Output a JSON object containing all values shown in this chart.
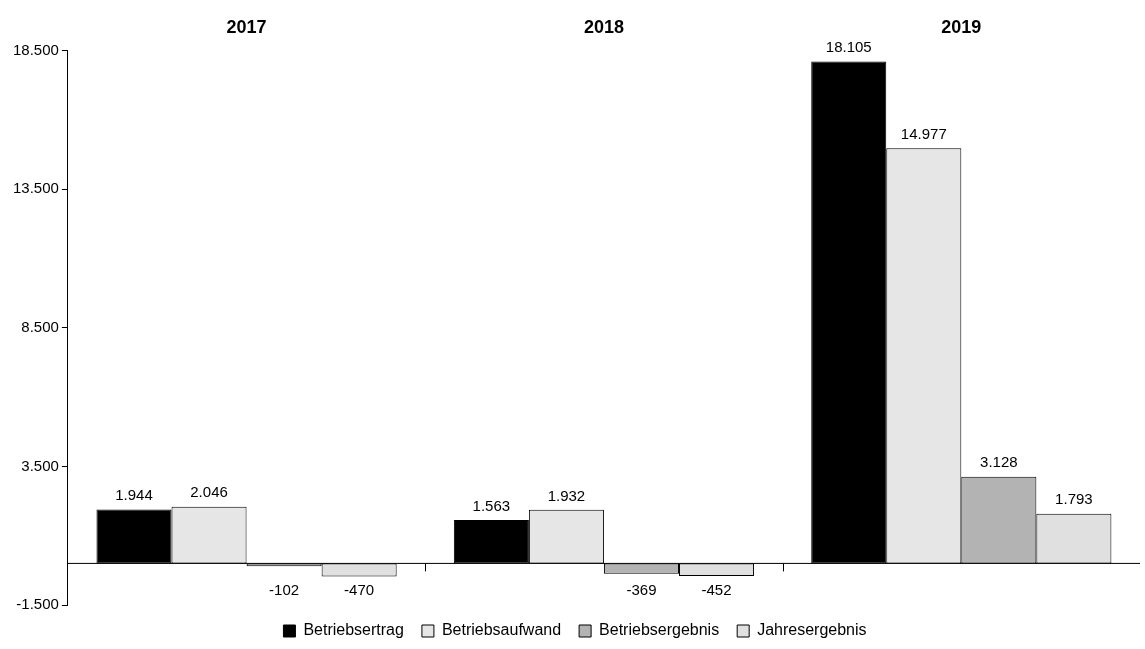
{
  "chart_data": {
    "type": "bar",
    "categories": [
      "2017",
      "2018",
      "2019"
    ],
    "series": [
      {
        "name": "Betriebsertrag",
        "color": "#000000",
        "values": [
          1944,
          1563,
          18105
        ],
        "value_labels": [
          "1.944",
          "1.563",
          "18.105"
        ]
      },
      {
        "name": "Betriebsaufwand",
        "color": "#e6e6e6",
        "values": [
          2046,
          1932,
          14977
        ],
        "value_labels": [
          "2.046",
          "1.932",
          "14.977"
        ]
      },
      {
        "name": "Betriebsergebnis",
        "color": "#b3b3b3",
        "values": [
          -102,
          -369,
          3128
        ],
        "value_labels": [
          "-102",
          "-369",
          "3.128"
        ]
      },
      {
        "name": "Jahresergebnis",
        "color": "#e0e0e0",
        "values": [
          -470,
          -452,
          1793
        ],
        "value_labels": [
          "-470",
          "-452",
          "1.793"
        ]
      }
    ],
    "ylim": [
      -1500,
      18500
    ],
    "yticks": [
      {
        "value": -1500,
        "label": "-1.500"
      },
      {
        "value": 3500,
        "label": "3.500"
      },
      {
        "value": 8500,
        "label": "8.500"
      },
      {
        "value": 13500,
        "label": "13.500"
      },
      {
        "value": 18500,
        "label": "18.500"
      }
    ],
    "grid": false,
    "legend": "bottom"
  }
}
